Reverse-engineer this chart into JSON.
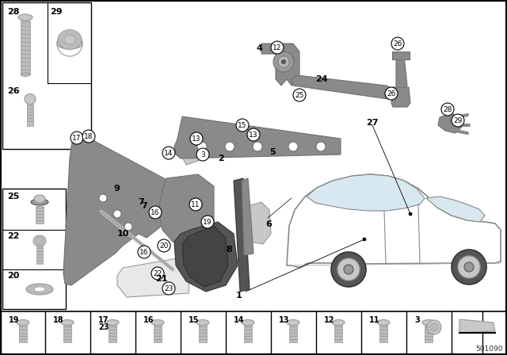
{
  "bg_color": "#ffffff",
  "part_number": "501090",
  "gray_part": "#8a8a8a",
  "dark_gray": "#555555",
  "light_gray": "#bbbbbb",
  "mid_gray": "#999999",
  "silver": "#c8c8c8",
  "dark_silver": "#707070"
}
